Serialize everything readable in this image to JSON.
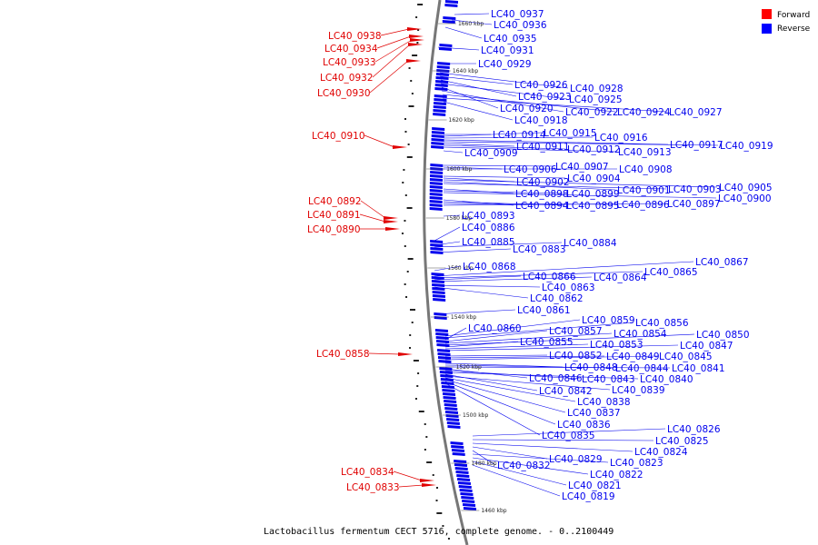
{
  "title": "Lactobacillus fermentum CECT 5716, complete genome. - 0..2100449",
  "legend": [
    {
      "label": "Forward",
      "color": "#ff0000"
    },
    {
      "label": "Reverse",
      "color": "#0000ff"
    }
  ],
  "colors": {
    "forward": "#e00000",
    "reverse": "#0000ee",
    "backbone": "#777777"
  },
  "scale_labels": [
    {
      "kbp": 1660,
      "text": "1660 kbp"
    },
    {
      "kbp": 1640,
      "text": "1640 kbp"
    },
    {
      "kbp": 1620,
      "text": "1620 kbp"
    },
    {
      "kbp": 1600,
      "text": "1600 kbp"
    },
    {
      "kbp": 1580,
      "text": "1580 kbp"
    },
    {
      "kbp": 1560,
      "text": "1560 kbp"
    },
    {
      "kbp": 1540,
      "text": "1540 kbp"
    },
    {
      "kbp": 1520,
      "text": "1520 kbp"
    },
    {
      "kbp": 1500,
      "text": "1500 kbp"
    },
    {
      "kbp": 1480,
      "text": "1480 kbp"
    },
    {
      "kbp": 1460,
      "text": "1460 kbp"
    }
  ],
  "forward_labels": [
    "LC40_0938",
    "LC40_0934",
    "LC40_0933",
    "LC40_0932",
    "LC40_0930",
    "LC40_0910",
    "LC40_0892",
    "LC40_0891",
    "LC40_0890",
    "LC40_0858",
    "LC40_0834",
    "LC40_0833"
  ],
  "reverse_labels": [
    "LC40_0937",
    "LC40_0936",
    "LC40_0935",
    "LC40_0931",
    "LC40_0929",
    "LC40_0928",
    "LC40_0926",
    "LC40_0923",
    "LC40_0925",
    "LC40_0920",
    "LC40_0922",
    "LC40_0924",
    "LC40_0927",
    "LC40_0918",
    "LC40_0914",
    "LC40_0915",
    "LC40_0916",
    "LC40_0917",
    "LC40_0919",
    "LC40_0911",
    "LC40_0912",
    "LC40_0913",
    "LC40_0909",
    "LC40_0907",
    "LC40_0906",
    "LC40_0908",
    "LC40_0904",
    "LC40_0902",
    "LC40_0905",
    "LC40_0901",
    "LC40_0903",
    "LC40_0898",
    "LC40_0899",
    "LC40_0900",
    "LC40_0894",
    "LC40_0895",
    "LC40_0896",
    "LC40_0897",
    "LC40_0893",
    "LC40_0886",
    "LC40_0885",
    "LC40_0884",
    "LC40_0883",
    "LC40_0868",
    "LC40_0867",
    "LC40_0865",
    "LC40_0866",
    "LC40_0864",
    "LC40_0863",
    "LC40_0862",
    "LC40_0861",
    "LC40_0859",
    "LC40_0856",
    "LC40_0860",
    "LC40_0857",
    "LC40_0854",
    "LC40_0850",
    "LC40_0855",
    "LC40_0853",
    "LC40_0847",
    "LC40_0852",
    "LC40_0849",
    "LC40_0845",
    "LC40_0848",
    "LC40_0844",
    "LC40_0841",
    "LC40_0846",
    "LC40_0843",
    "LC40_0840",
    "LC40_0842",
    "LC40_0839",
    "LC40_0838",
    "LC40_0837",
    "LC40_0836",
    "LC40_0835",
    "LC40_0826",
    "LC40_0825",
    "LC40_0824",
    "LC40_0829",
    "LC40_0832",
    "LC40_0823",
    "LC40_0822",
    "LC40_0821",
    "LC40_0819"
  ]
}
